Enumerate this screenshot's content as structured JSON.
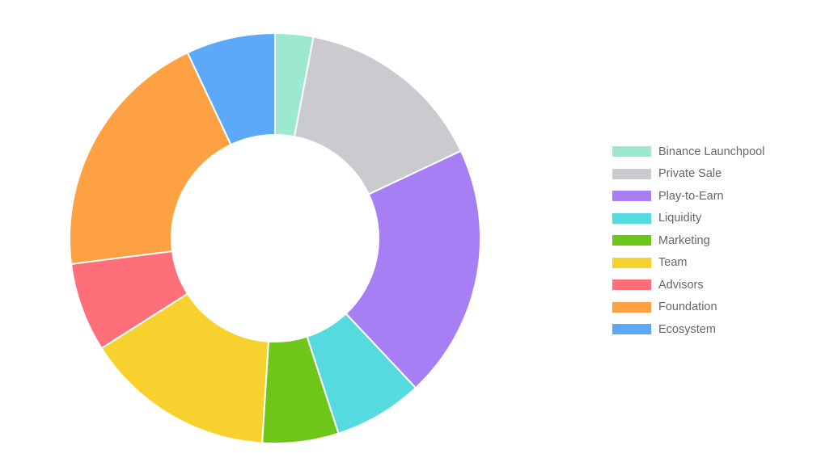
{
  "chart_data": {
    "type": "pie",
    "variant": "doughnut",
    "legend_position": "right",
    "categories": [
      "Binance Launchpool",
      "Private Sale",
      "Play-to-Earn",
      "Liquidity",
      "Marketing",
      "Team",
      "Advisors",
      "Foundation",
      "Ecosystem"
    ],
    "values": [
      3,
      15,
      20,
      7,
      6,
      15,
      7,
      20,
      7
    ],
    "colors": [
      "#9de8d0",
      "#c9cbcf",
      "#a77ff5",
      "#55dadf",
      "#6ec619",
      "#f7d22f",
      "#fe6f79",
      "#fea142",
      "#5ca9f7"
    ],
    "border_color": "#ffffff"
  }
}
